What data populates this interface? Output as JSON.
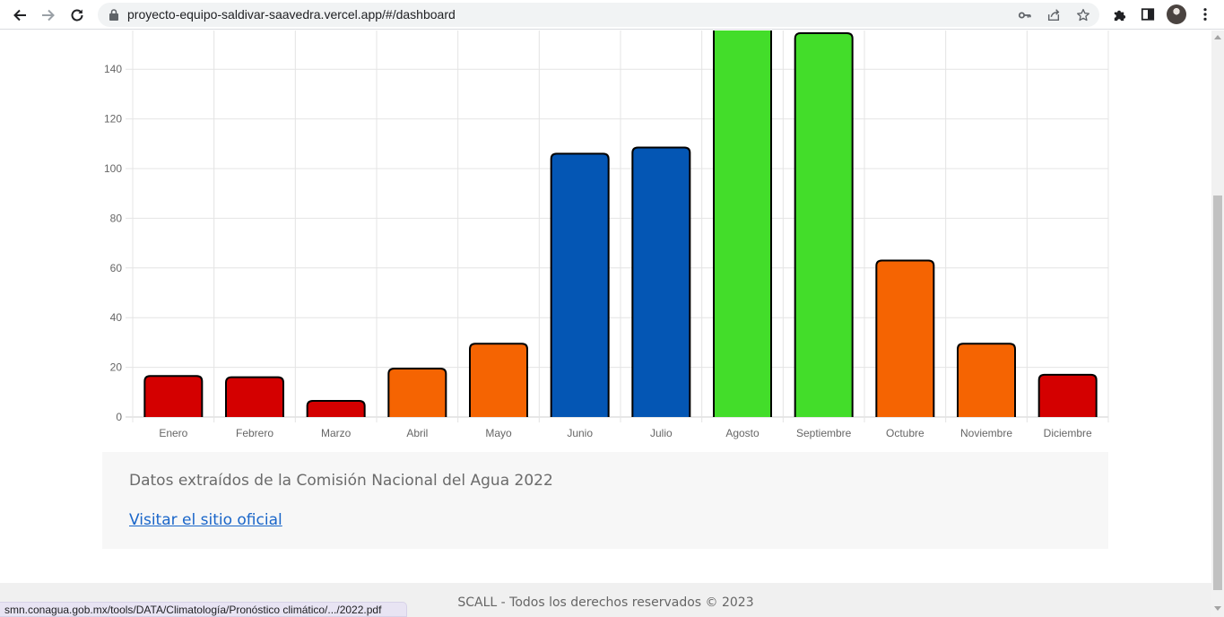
{
  "browser": {
    "url": "proyecto-equipo-saldivar-saavedra.vercel.app/#/dashboard",
    "status_url": "smn.conagua.gob.mx/tools/DATA/Climatología/Pronóstico climático/.../2022.pdf"
  },
  "chart_data": {
    "type": "bar",
    "categories": [
      "Enero",
      "Febrero",
      "Marzo",
      "Abril",
      "Mayo",
      "Junio",
      "Julio",
      "Agosto",
      "Septiembre",
      "Octubre",
      "Noviembre",
      "Diciembre"
    ],
    "values": [
      16.5,
      16,
      6.5,
      19.5,
      29.5,
      106,
      108.5,
      165,
      154.5,
      63,
      29.5,
      17
    ],
    "colors": [
      "#d40000",
      "#d40000",
      "#d40000",
      "#f56402",
      "#f56402",
      "#0456b4",
      "#0456b4",
      "#43dd2a",
      "#43dd2a",
      "#f56402",
      "#f56402",
      "#d40000"
    ],
    "y_ticks": [
      "0",
      "20",
      "40",
      "60",
      "80",
      "100",
      "120",
      "140"
    ],
    "ylim": [
      0,
      160
    ],
    "grid": true,
    "title": "",
    "xlabel": "",
    "ylabel": ""
  },
  "info": {
    "text": "Datos extraídos de la Comisión Nacional del Agua 2022",
    "link_label": "Visitar el sitio oficial"
  },
  "footer": {
    "text": "SCALL - Todos los derechos reservados © 2023"
  }
}
